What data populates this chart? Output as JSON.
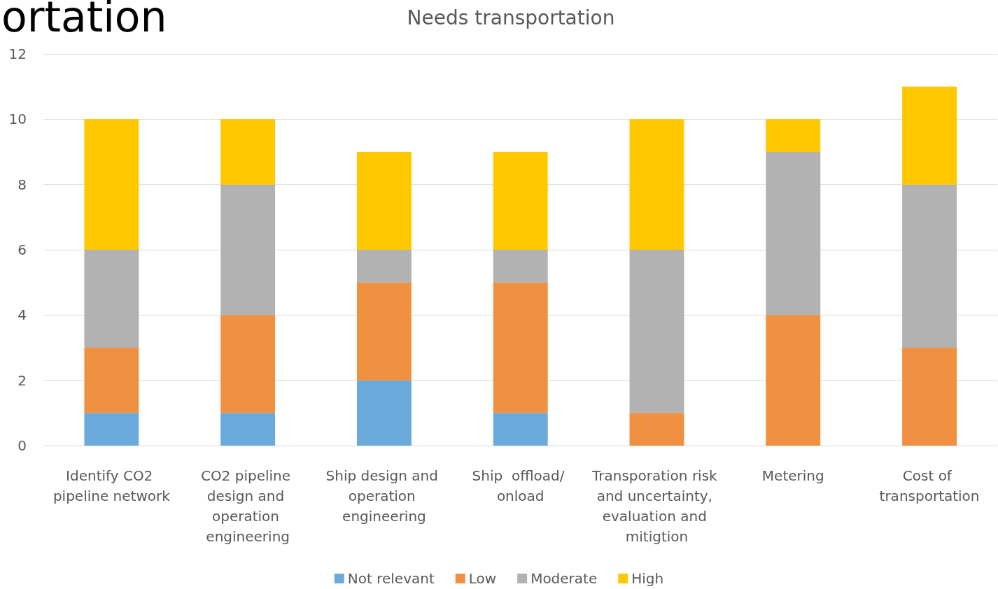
{
  "chart_data": {
    "type": "bar",
    "title": "Needs transportation",
    "stacked": true,
    "categories": [
      "Identify CO2 pipeline network",
      "CO2 pipeline design and operation engineering",
      "Ship design and operation engineering",
      "Ship  offload/ onload",
      "Transporation risk and uncertainty, evaluation and mitigtion",
      "Metering",
      "Cost of transportation"
    ],
    "series": [
      {
        "name": "Not relevant",
        "color": "#6aabdc",
        "values": [
          1,
          1,
          2,
          1,
          0,
          0,
          0
        ]
      },
      {
        "name": "Low",
        "color": "#f09142",
        "values": [
          2,
          3,
          3,
          4,
          1,
          4,
          3
        ]
      },
      {
        "name": "Moderate",
        "color": "#b2b2b2",
        "values": [
          3,
          4,
          1,
          1,
          5,
          5,
          5
        ]
      },
      {
        "name": "High",
        "color": "#ffc800",
        "values": [
          4,
          2,
          3,
          3,
          4,
          1,
          3
        ]
      }
    ],
    "ylim": [
      0,
      12
    ],
    "yticks": [
      0,
      2,
      4,
      6,
      8,
      10,
      12
    ],
    "grid": "y",
    "legend": "bottom",
    "annotations": [
      "ortation"
    ]
  }
}
